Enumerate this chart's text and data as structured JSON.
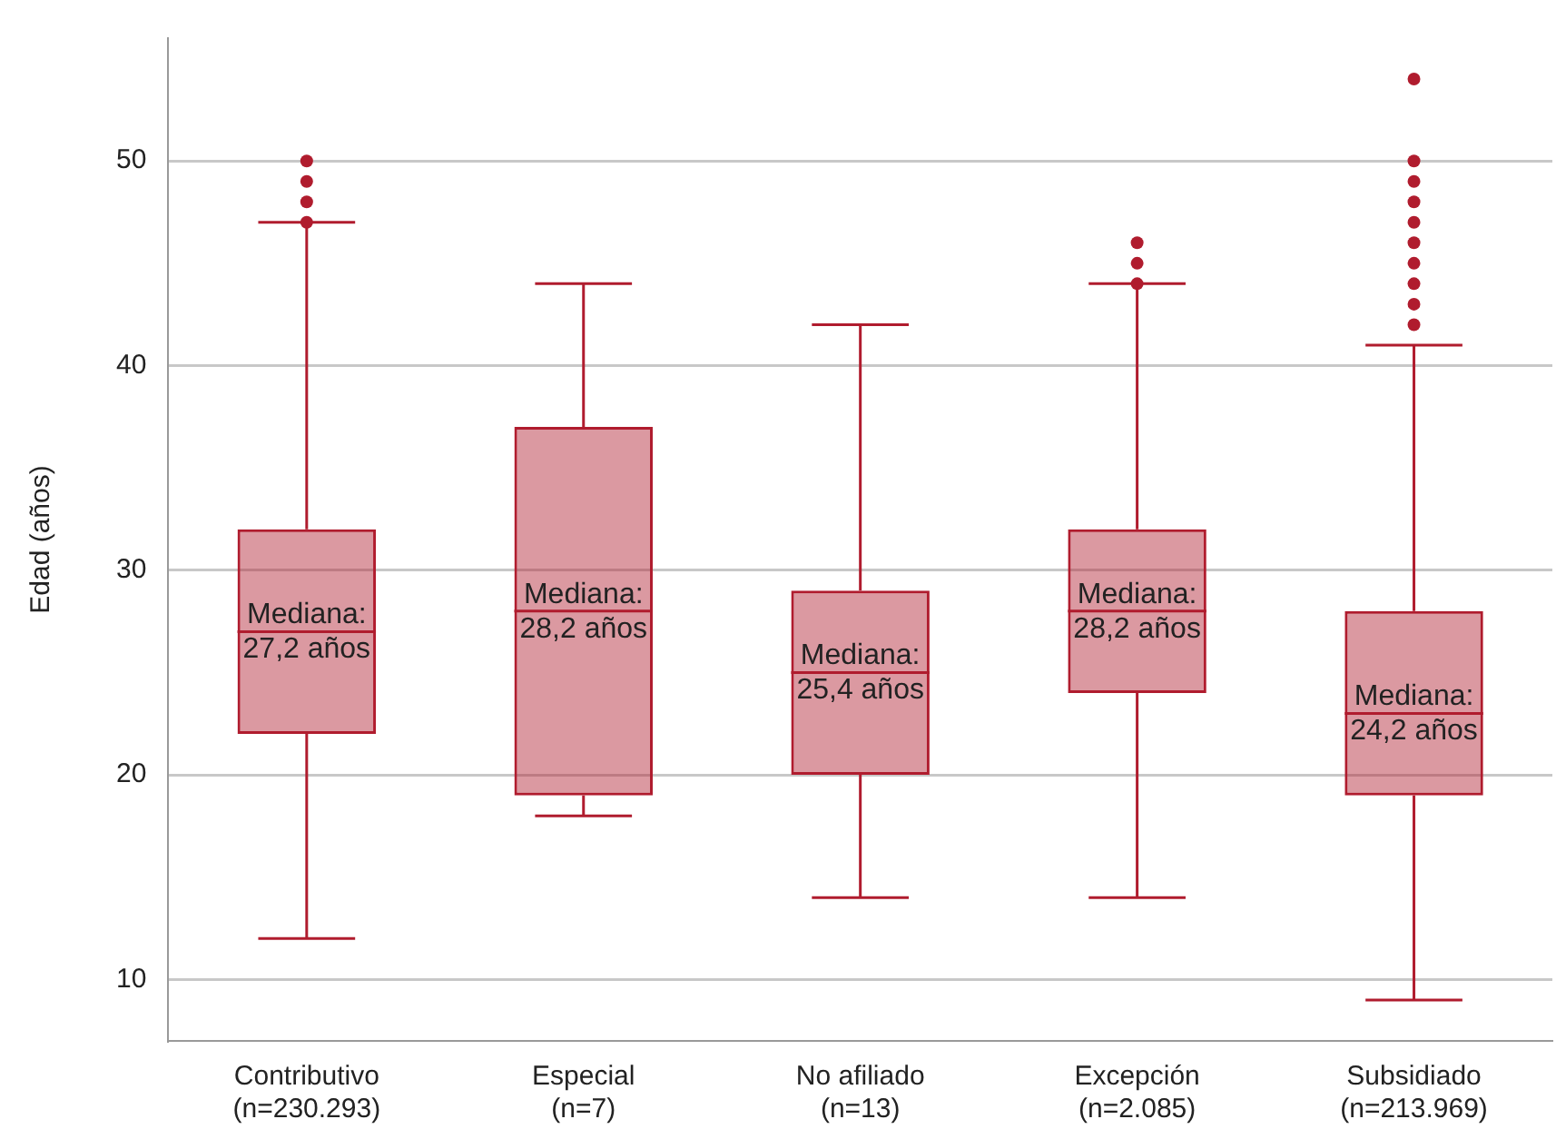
{
  "chart_data": {
    "type": "box",
    "ylabel": "Edad (años)",
    "categories": [
      "Contributivo\n(n=230.293)",
      "Especial\n(n=7)",
      "No afiliado\n(n=13)",
      "Excepción\n(n=2.085)",
      "Subsidiado\n(n=213.969)"
    ],
    "color": "#b01c2e",
    "boxes": [
      {
        "low": 12,
        "q1": 22,
        "median": 27,
        "q3": 32,
        "high": 47,
        "outliers": [
          47,
          48,
          49,
          50
        ]
      },
      {
        "low": 18,
        "q1": 19,
        "median": 28,
        "q3": 37,
        "high": 44
      },
      {
        "low": 14,
        "q1": 20,
        "median": 25,
        "q3": 29,
        "high": 42
      },
      {
        "low": 14,
        "q1": 24,
        "median": 28,
        "q3": 32,
        "high": 44,
        "outliers": [
          44,
          45,
          46
        ]
      },
      {
        "low": 9,
        "q1": 19,
        "median": 23,
        "q3": 28,
        "high": 41,
        "outliers": [
          42,
          43,
          44,
          45,
          46,
          47,
          48,
          49,
          50,
          54
        ]
      }
    ],
    "ylim": [
      7,
      56
    ],
    "yticks": [
      10,
      20,
      30,
      40,
      50
    ],
    "grid": "y",
    "annotations": [
      {
        "text": "Mediana:\n27,2 años",
        "x": "Contributivo\n(n=230.293)",
        "y": 27
      },
      {
        "text": "Mediana:\n28,2 años",
        "x": "Especial\n(n=7)",
        "y": 28
      },
      {
        "text": "Mediana:\n25,4 años",
        "x": "No afiliado\n(n=13)",
        "y": 25
      },
      {
        "text": "Mediana:\n28,2 años",
        "x": "Excepción\n(n=2.085)",
        "y": 28
      },
      {
        "text": "Mediana:\n24,2 años",
        "x": "Subsidiado\n(n=213.969)",
        "y": 23
      }
    ]
  }
}
